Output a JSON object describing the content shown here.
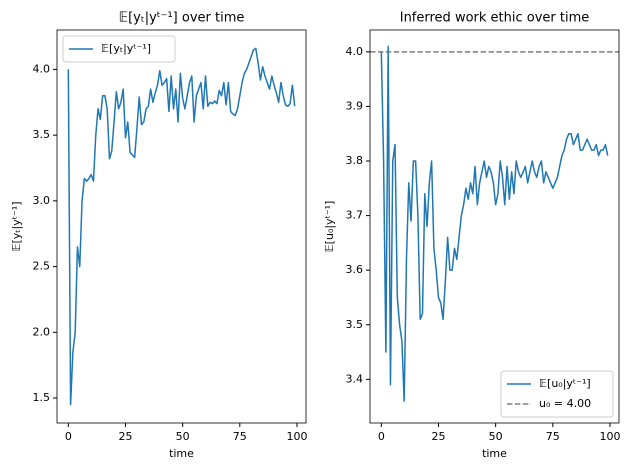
{
  "chart_data": [
    {
      "type": "line",
      "title": "𝔼[yₜ|yᵗ⁻¹] over time",
      "x_label": "time",
      "y_label": "𝔼[yₜ|yᵗ⁻¹]",
      "x": [
        0,
        1,
        2,
        3,
        4,
        5,
        6,
        7,
        8,
        9,
        10,
        11,
        12,
        13,
        14,
        15,
        16,
        17,
        18,
        19,
        20,
        21,
        22,
        23,
        24,
        25,
        26,
        27,
        28,
        29,
        30,
        31,
        32,
        33,
        34,
        35,
        36,
        37,
        38,
        39,
        40,
        41,
        42,
        43,
        44,
        45,
        46,
        47,
        48,
        49,
        50,
        51,
        52,
        53,
        54,
        55,
        56,
        57,
        58,
        59,
        60,
        61,
        62,
        63,
        64,
        65,
        66,
        67,
        68,
        69,
        70,
        71,
        72,
        73,
        74,
        75,
        76,
        77,
        78,
        79,
        80,
        81,
        82,
        83,
        84,
        85,
        86,
        87,
        88,
        89,
        90,
        91,
        92,
        93,
        94,
        95,
        96,
        97,
        98,
        99
      ],
      "series": [
        {
          "name": "𝔼[yₜ|yᵗ⁻¹]",
          "color": "#1f77b4",
          "values": [
            4.0,
            1.45,
            1.85,
            2.0,
            2.65,
            2.5,
            3.0,
            3.17,
            3.15,
            3.17,
            3.2,
            3.15,
            3.5,
            3.7,
            3.62,
            3.8,
            3.8,
            3.7,
            3.32,
            3.38,
            3.6,
            3.83,
            3.7,
            3.75,
            3.85,
            3.48,
            3.6,
            3.37,
            3.35,
            3.33,
            3.55,
            3.79,
            3.58,
            3.6,
            3.7,
            3.72,
            3.85,
            3.75,
            3.82,
            3.88,
            3.99,
            3.88,
            3.9,
            3.93,
            3.68,
            3.95,
            3.7,
            3.85,
            3.6,
            3.97,
            3.78,
            3.7,
            3.8,
            3.9,
            3.95,
            3.6,
            3.8,
            3.85,
            3.9,
            3.7,
            3.95,
            3.72,
            3.75,
            3.74,
            3.76,
            3.74,
            3.84,
            3.8,
            3.9,
            3.73,
            3.9,
            3.68,
            3.66,
            3.65,
            3.7,
            3.8,
            3.9,
            3.97,
            4.0,
            4.05,
            4.1,
            4.15,
            4.16,
            4.05,
            3.92,
            4.02,
            3.95,
            3.9,
            3.85,
            3.95,
            3.88,
            3.82,
            3.75,
            3.9,
            3.8,
            3.73,
            3.72,
            3.74,
            3.88,
            3.72
          ]
        }
      ],
      "xlim": [
        -4.95,
        103.95
      ],
      "xticks": [
        0,
        25,
        50,
        75,
        100
      ],
      "ylim": [
        1.31,
        4.3
      ],
      "yticks": [
        1.5,
        {
          "value": 2.0,
          "label": "2.0"
        },
        2.5,
        {
          "value": 3.0,
          "label": "3.0"
        },
        3.5,
        {
          "value": 4.0,
          "label": "4.0"
        }
      ],
      "legend": "upper left"
    },
    {
      "type": "line",
      "title": "Inferred work ethic over time",
      "x_label": "time",
      "y_label": "𝔼[u₀|yᵗ⁻¹]",
      "x": [
        0,
        1,
        2,
        3,
        4,
        5,
        6,
        7,
        8,
        9,
        10,
        11,
        12,
        13,
        14,
        15,
        16,
        17,
        18,
        19,
        20,
        21,
        22,
        23,
        24,
        25,
        26,
        27,
        28,
        29,
        30,
        31,
        32,
        33,
        34,
        35,
        36,
        37,
        38,
        39,
        40,
        41,
        42,
        43,
        44,
        45,
        46,
        47,
        48,
        49,
        50,
        51,
        52,
        53,
        54,
        55,
        56,
        57,
        58,
        59,
        60,
        61,
        62,
        63,
        64,
        65,
        66,
        67,
        68,
        69,
        70,
        71,
        72,
        73,
        74,
        75,
        76,
        77,
        78,
        79,
        80,
        81,
        82,
        83,
        84,
        85,
        86,
        87,
        88,
        89,
        90,
        91,
        92,
        93,
        94,
        95,
        96,
        97,
        98,
        99
      ],
      "series": [
        {
          "name": "𝔼[u₀|yᵗ⁻¹]",
          "color": "#1f77b4",
          "values": [
            4.0,
            3.8,
            3.45,
            4.01,
            3.39,
            3.8,
            3.83,
            3.55,
            3.5,
            3.47,
            3.36,
            3.62,
            3.76,
            3.69,
            3.8,
            3.8,
            3.7,
            3.51,
            3.52,
            3.74,
            3.68,
            3.76,
            3.8,
            3.64,
            3.6,
            3.55,
            3.54,
            3.51,
            3.58,
            3.66,
            3.6,
            3.6,
            3.64,
            3.62,
            3.66,
            3.7,
            3.72,
            3.75,
            3.73,
            3.76,
            3.74,
            3.79,
            3.72,
            3.76,
            3.78,
            3.8,
            3.77,
            3.79,
            3.78,
            3.76,
            3.72,
            3.74,
            3.8,
            3.77,
            3.72,
            3.79,
            3.73,
            3.78,
            3.74,
            3.8,
            3.78,
            3.77,
            3.78,
            3.79,
            3.76,
            3.78,
            3.8,
            3.78,
            3.77,
            3.79,
            3.8,
            3.76,
            3.78,
            3.77,
            3.76,
            3.75,
            3.76,
            3.77,
            3.79,
            3.81,
            3.82,
            3.84,
            3.85,
            3.85,
            3.83,
            3.84,
            3.85,
            3.82,
            3.82,
            3.83,
            3.84,
            3.83,
            3.82,
            3.82,
            3.83,
            3.81,
            3.82,
            3.82,
            3.83,
            3.81
          ]
        }
      ],
      "hlines": [
        {
          "name": "u₀ = 4.00",
          "value": 4.0,
          "color": "#7f7f7f",
          "dashed": true
        }
      ],
      "xlim": [
        -4.95,
        103.95
      ],
      "xticks": [
        0,
        25,
        50,
        75,
        100
      ],
      "ylim": [
        3.32,
        4.04
      ],
      "yticks": [
        3.4,
        3.5,
        3.6,
        3.7,
        3.8,
        3.9,
        {
          "value": 4.0,
          "label": "4.0"
        }
      ],
      "legend": "lower right"
    }
  ]
}
